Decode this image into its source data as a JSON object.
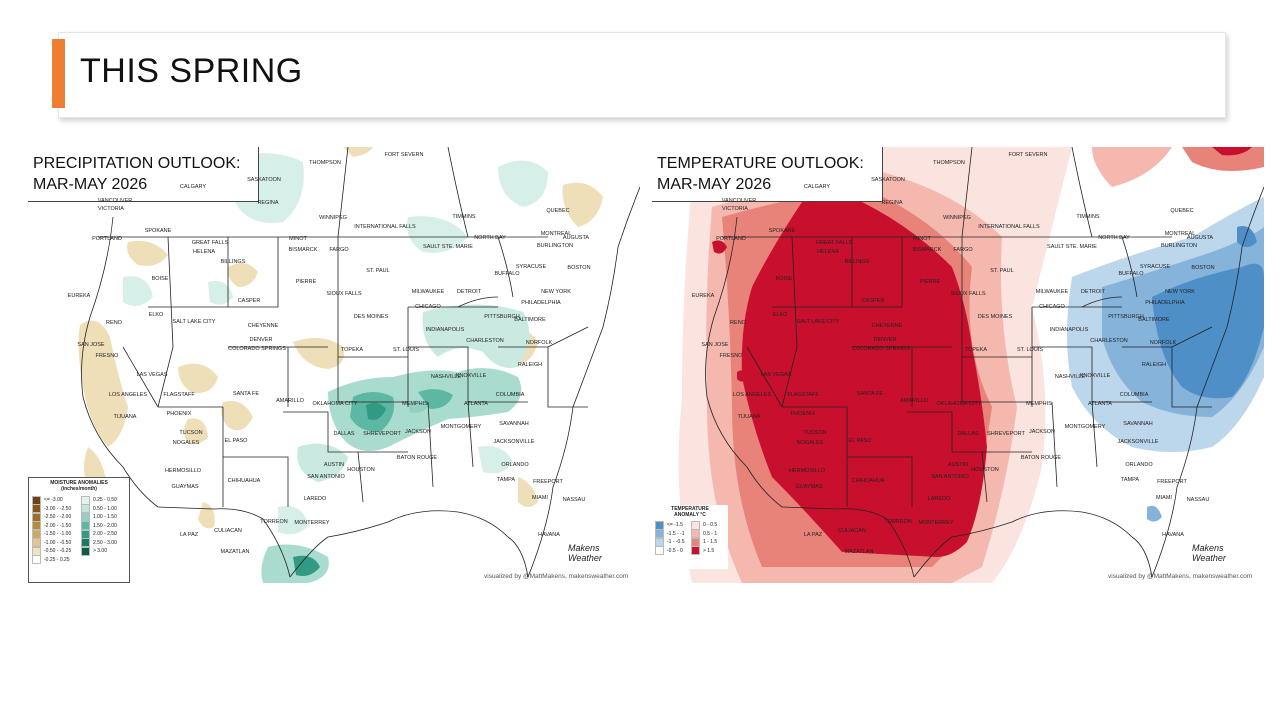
{
  "slide": {
    "title": "THIS SPRING"
  },
  "precip_map": {
    "title_line1": "PRECIPITATION OUTLOOK:",
    "title_line2": "MAR-MAY 2026",
    "legend": {
      "title": "MOISTURE ANOMALIES (inches/month)",
      "dry": [
        {
          "label": "<= -3.00",
          "color": "#6b4410"
        },
        {
          "label": "-3.00 - -2.50",
          "color": "#865716"
        },
        {
          "label": "-2.50 - -2.00",
          "color": "#a06d22"
        },
        {
          "label": "-2.00 - -1.50",
          "color": "#b98a3a"
        },
        {
          "label": "-1.50 - -1.00",
          "color": "#cfa860"
        },
        {
          "label": "-1.00 - -0.50",
          "color": "#e2c68e"
        },
        {
          "label": "-0.50 - -0.25",
          "color": "#f1e2c0"
        },
        {
          "label": "-0.25 - 0.25",
          "color": "#ffffff"
        }
      ],
      "wet": [
        {
          "label": "0.25 - 0.50",
          "color": "#e3f3ef"
        },
        {
          "label": "0.50 - 1.00",
          "color": "#c2e6de"
        },
        {
          "label": "1.00 - 1.50",
          "color": "#92d1c2"
        },
        {
          "label": "1.50 - 2.00",
          "color": "#5db8a3"
        },
        {
          "label": "2.00 - 2.50",
          "color": "#309a82"
        },
        {
          "label": "2.50 - 3.00",
          "color": "#1a7a64"
        },
        {
          "label": "> 3.00",
          "color": "#0d5a48"
        }
      ]
    },
    "credit": "visualized by @MattMakens, makensweather.com",
    "logo": "Makens Weather"
  },
  "temp_map": {
    "title_line1": "TEMPERATURE OUTLOOK:",
    "title_line2": "MAR-MAY 2026",
    "legend": {
      "title": "TEMPERATURE ANOMALY °C",
      "cold": [
        {
          "label": "<= -1.5",
          "color": "#4f8fc8"
        },
        {
          "label": "-1.5 - -1",
          "color": "#86b3da"
        },
        {
          "label": "-1 - -0.5",
          "color": "#bcd6ec"
        },
        {
          "label": "-0.5 - 0",
          "color": "#ffffff"
        }
      ],
      "warm": [
        {
          "label": "0 - 0.5",
          "color": "#fbe3df"
        },
        {
          "label": "0.5 - 1",
          "color": "#f5b8ae"
        },
        {
          "label": "1 - 1.5",
          "color": "#e8837a"
        },
        {
          "label": "> 1.5",
          "color": "#c8102e"
        }
      ]
    },
    "credit": "visualized by @MattMakens, makensweather.com",
    "logo": "Makens Weather"
  },
  "cities": [
    {
      "name": "THOMPSON"
    },
    {
      "name": "FORT SEVERN"
    },
    {
      "name": "SASKATOON"
    },
    {
      "name": "CALGARY"
    },
    {
      "name": "VANCOUVER"
    },
    {
      "name": "VICTORIA"
    },
    {
      "name": "REGINA"
    },
    {
      "name": "WINNIPEG"
    },
    {
      "name": "TIMMINS"
    },
    {
      "name": "QUEBEC"
    },
    {
      "name": "INTERNATIONAL FALLS"
    },
    {
      "name": "NORTH BAY"
    },
    {
      "name": "MONTREAL"
    },
    {
      "name": "AUGUSTA"
    },
    {
      "name": "SPOKANE"
    },
    {
      "name": "GREAT FALLS"
    },
    {
      "name": "HELENA"
    },
    {
      "name": "MINOT"
    },
    {
      "name": "BISMARCK"
    },
    {
      "name": "FARGO"
    },
    {
      "name": "SAULT STE. MARIE"
    },
    {
      "name": "BURLINGTON"
    },
    {
      "name": "PORTLAND"
    },
    {
      "name": "BILLINGS"
    },
    {
      "name": "ST. PAUL"
    },
    {
      "name": "SYRACUSE"
    },
    {
      "name": "BOSTON"
    },
    {
      "name": "BUFFALO"
    },
    {
      "name": "BOISE"
    },
    {
      "name": "PIERRE"
    },
    {
      "name": "MILWAUKEE"
    },
    {
      "name": "DETROIT"
    },
    {
      "name": "NEW YORK"
    },
    {
      "name": "EUREKA"
    },
    {
      "name": "CASPER"
    },
    {
      "name": "SIOUX FALLS"
    },
    {
      "name": "CHICAGO"
    },
    {
      "name": "PHILADELPHIA"
    },
    {
      "name": "ELKO"
    },
    {
      "name": "RENO"
    },
    {
      "name": "SALT LAKE CITY"
    },
    {
      "name": "CHEYENNE"
    },
    {
      "name": "DES MOINES"
    },
    {
      "name": "PITTSBURGH"
    },
    {
      "name": "BALTIMORE"
    },
    {
      "name": "INDIANAPOLIS"
    },
    {
      "name": "SAN JOSE"
    },
    {
      "name": "DENVER"
    },
    {
      "name": "COLORADO SPRINGS"
    },
    {
      "name": "FRESNO"
    },
    {
      "name": "TOPEKA"
    },
    {
      "name": "ST. LOUIS"
    },
    {
      "name": "CHARLESTON"
    },
    {
      "name": "NORFOLK"
    },
    {
      "name": "LAS VEGAS"
    },
    {
      "name": "RALEIGH"
    },
    {
      "name": "NASHVILLE"
    },
    {
      "name": "KNOXVILLE"
    },
    {
      "name": "LOS ANGELES"
    },
    {
      "name": "FLAGSTAFF"
    },
    {
      "name": "SANTA FE"
    },
    {
      "name": "AMARILLO"
    },
    {
      "name": "OKLAHOMA CITY"
    },
    {
      "name": "MEMPHIS"
    },
    {
      "name": "ATLANTA"
    },
    {
      "name": "COLUMBIA"
    },
    {
      "name": "TIJUANA"
    },
    {
      "name": "PHOENIX"
    },
    {
      "name": "SAVANNAH"
    },
    {
      "name": "DALLAS"
    },
    {
      "name": "SHREVEPORT"
    },
    {
      "name": "JACKSON"
    },
    {
      "name": "MONTGOMERY"
    },
    {
      "name": "TUCSON"
    },
    {
      "name": "NOGALES"
    },
    {
      "name": "EL PASO"
    },
    {
      "name": "JACKSONVILLE"
    },
    {
      "name": "BATON ROUGE"
    },
    {
      "name": "AUSTIN"
    },
    {
      "name": "HOUSTON"
    },
    {
      "name": "ORLANDO"
    },
    {
      "name": "HERMOSILLO"
    },
    {
      "name": "CHIHUAHUA"
    },
    {
      "name": "SAN ANTONIO"
    },
    {
      "name": "TAMPA"
    },
    {
      "name": "FREEPORT"
    },
    {
      "name": "GUAYMAS"
    },
    {
      "name": "LAREDO"
    },
    {
      "name": "MIAMI"
    },
    {
      "name": "NASSAU"
    },
    {
      "name": "CULIACAN"
    },
    {
      "name": "TORREON"
    },
    {
      "name": "MONTERREY"
    },
    {
      "name": "HAVANA"
    },
    {
      "name": "LA PAZ"
    },
    {
      "name": "MAZATLAN"
    }
  ]
}
